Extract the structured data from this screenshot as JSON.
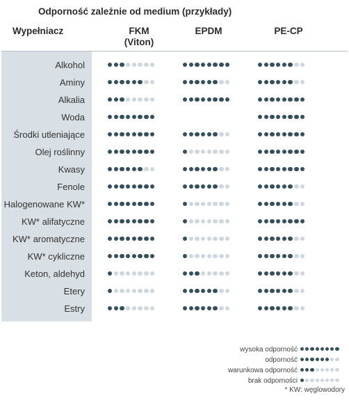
{
  "title": "Odporność zależnie od medium (przykłady)",
  "columns": {
    "filler": "Wypełniacz",
    "fkm": "FKM",
    "fkm_sub": "(Viton)",
    "epdm": "EPDM",
    "pecp": "PE-CP"
  },
  "colors": {
    "filled": "#35505c",
    "empty": "#ced7de",
    "band": "#d8dfe5"
  },
  "rows": [
    {
      "label": "Alkohol",
      "fkm": 3,
      "epdm": 8,
      "pecp": 6
    },
    {
      "label": "Aminy",
      "fkm": 6,
      "epdm": 6,
      "pecp": 6
    },
    {
      "label": "Alkalia",
      "fkm": 3,
      "epdm": 8,
      "pecp": 8
    },
    {
      "label": "Woda",
      "fkm": 8,
      "epdm": null,
      "pecp": 8
    },
    {
      "label": "Środki utleniające",
      "fkm": 8,
      "epdm": 6,
      "pecp": 8
    },
    {
      "label": "Olej roślinny",
      "fkm": 8,
      "epdm": 1,
      "pecp": 8
    },
    {
      "label": "Kwasy",
      "fkm": 6,
      "epdm": 6,
      "pecp": 8
    },
    {
      "label": "Fenole",
      "fkm": 8,
      "epdm": 6,
      "pecp": 6
    },
    {
      "label": "Halogenowane KW*",
      "fkm": 8,
      "epdm": 1,
      "pecp": 6
    },
    {
      "label": "KW* alifatyczne",
      "fkm": 8,
      "epdm": 1,
      "pecp": 8
    },
    {
      "label": "KW* aromatyczne",
      "fkm": 8,
      "epdm": 1,
      "pecp": 6
    },
    {
      "label": "KW* cykliczne",
      "fkm": 8,
      "epdm": 1,
      "pecp": 6
    },
    {
      "label": "Keton, aldehyd",
      "fkm": 1,
      "epdm": 3,
      "pecp": 6
    },
    {
      "label": "Etery",
      "fkm": 1,
      "epdm": 6,
      "pecp": 6
    },
    {
      "label": "Estry",
      "fkm": 3,
      "epdm": 6,
      "pecp": 6
    }
  ],
  "legend": [
    {
      "label": "wysoka odporność",
      "filled": 8
    },
    {
      "label": "odporność",
      "filled": 6
    },
    {
      "label": "warunkowa odporność",
      "filled": 3
    },
    {
      "label": "brak odporności",
      "filled": 1
    }
  ],
  "footnote": "* KW: węglowodory"
}
